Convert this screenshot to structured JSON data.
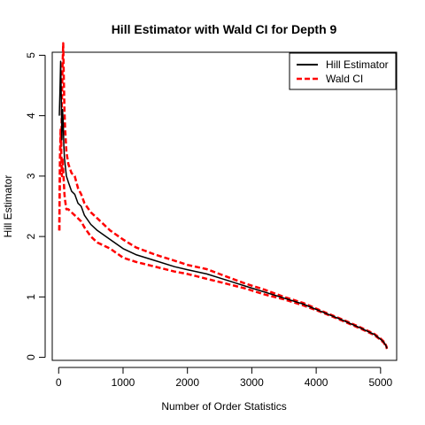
{
  "chart_data": {
    "type": "line",
    "title": "Hill Estimator with Wald CI for Depth 9",
    "xlabel": "Number of Order Statistics",
    "ylabel": "Hill Estimator",
    "xlim": [
      -100,
      5250
    ],
    "ylim": [
      -0.05,
      5.05
    ],
    "x_ticks": [
      0,
      1000,
      2000,
      3000,
      4000,
      5000
    ],
    "x_tick_labels": [
      "0",
      "1000",
      "2000",
      "3000",
      "4000",
      "5000"
    ],
    "y_ticks": [
      0,
      1,
      2,
      3,
      4,
      5
    ],
    "y_tick_labels": [
      "0",
      "1",
      "2",
      "3",
      "4",
      "5"
    ],
    "legend": {
      "position": "top-right",
      "entries": [
        {
          "label": "Hill Estimator",
          "color": "#000000",
          "style": "solid"
        },
        {
          "label": "Wald CI",
          "color": "#ff0000",
          "style": "dashed"
        }
      ]
    },
    "series": [
      {
        "name": "Hill Estimator",
        "color": "#000000",
        "style": "solid",
        "x": [
          10,
          20,
          30,
          40,
          50,
          60,
          70,
          80,
          90,
          100,
          120,
          150,
          200,
          250,
          300,
          350,
          400,
          500,
          600,
          800,
          1000,
          1200,
          1500,
          1800,
          2000,
          2300,
          2600,
          2900,
          3200,
          3500,
          3800,
          4100,
          4400,
          4700,
          4900,
          5000,
          5050,
          5080,
          5100
        ],
        "y": [
          4.0,
          4.4,
          4.9,
          4.3,
          3.6,
          4.1,
          3.9,
          3.5,
          3.3,
          3.2,
          3.0,
          2.9,
          2.75,
          2.7,
          2.55,
          2.5,
          2.35,
          2.2,
          2.1,
          1.95,
          1.8,
          1.7,
          1.6,
          1.5,
          1.45,
          1.38,
          1.28,
          1.18,
          1.08,
          0.98,
          0.88,
          0.75,
          0.62,
          0.48,
          0.38,
          0.3,
          0.25,
          0.2,
          0.15
        ]
      },
      {
        "name": "Wald CI",
        "color": "#ff0000",
        "style": "dashed",
        "x": [
          10,
          20,
          30,
          40,
          50,
          60,
          70,
          80,
          90,
          100,
          120,
          150,
          200,
          250,
          300,
          350,
          400,
          500,
          600,
          800,
          1000,
          1200,
          1500,
          1800,
          2000,
          2300,
          2600,
          2900,
          3200,
          3500,
          3800,
          4100,
          4400,
          4700,
          4900,
          5000,
          5050,
          5080,
          5100
        ],
        "y": [
          2.1,
          3.3,
          3.8,
          3.5,
          4.2,
          4.8,
          5.2,
          4.6,
          4.1,
          3.8,
          3.4,
          3.2,
          3.05,
          3.0,
          2.8,
          2.7,
          2.55,
          2.4,
          2.3,
          2.1,
          1.95,
          1.82,
          1.7,
          1.6,
          1.53,
          1.46,
          1.34,
          1.22,
          1.12,
          1.0,
          0.9,
          0.76,
          0.63,
          0.49,
          0.39,
          0.31,
          0.26,
          0.21,
          0.16
        ]
      },
      {
        "name": "",
        "color": "#ff0000",
        "style": "dashed",
        "x": [
          10,
          20,
          30,
          40,
          50,
          60,
          70,
          80,
          90,
          100,
          120,
          150,
          200,
          250,
          300,
          350,
          400,
          500,
          600,
          800,
          1000,
          1200,
          1500,
          1800,
          2000,
          2300,
          2600,
          2900,
          3200,
          3500,
          3800,
          4100,
          4400,
          4700,
          4900,
          5000,
          5050,
          5080,
          5100
        ],
        "y": [
          2.1,
          3.1,
          3.7,
          3.4,
          3.0,
          3.3,
          3.1,
          2.9,
          2.7,
          2.6,
          2.45,
          2.45,
          2.4,
          2.35,
          2.3,
          2.25,
          2.15,
          2.0,
          1.9,
          1.8,
          1.65,
          1.58,
          1.5,
          1.42,
          1.38,
          1.3,
          1.22,
          1.14,
          1.04,
          0.96,
          0.86,
          0.74,
          0.61,
          0.47,
          0.37,
          0.29,
          0.24,
          0.19,
          0.14
        ]
      }
    ]
  }
}
